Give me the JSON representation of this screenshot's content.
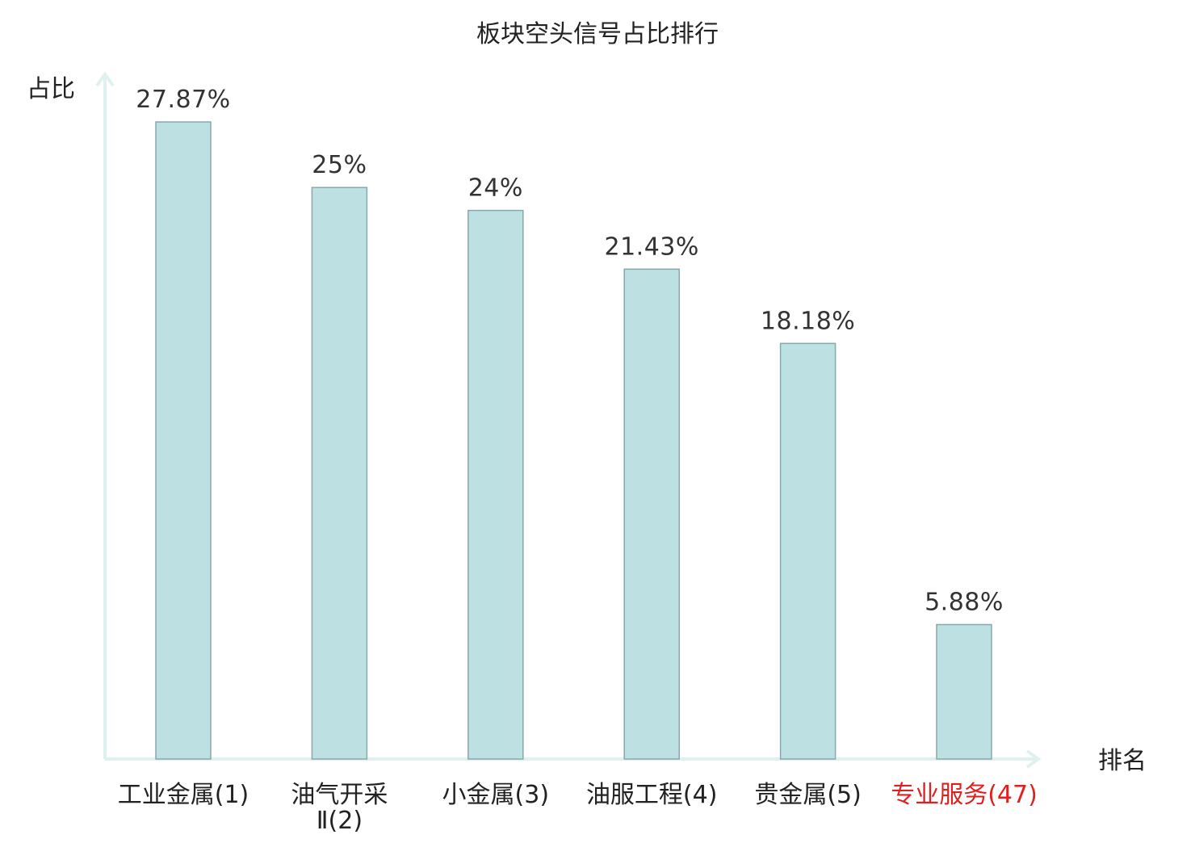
{
  "chart_data": {
    "type": "bar",
    "title": "板块空头信号占比排行",
    "ylabel": "占比",
    "xlabel": "排名",
    "categories": [
      [
        "工业金属(1)"
      ],
      [
        "油气开采",
        "Ⅱ(2)"
      ],
      [
        "小金属(3)"
      ],
      [
        "油服工程(4)"
      ],
      [
        "贵金属(5)"
      ],
      [
        "专业服务(47)"
      ]
    ],
    "values": [
      27.87,
      25,
      24,
      21.43,
      18.18,
      5.88
    ],
    "value_labels": [
      "27.87%",
      "25%",
      "24%",
      "21.43%",
      "18.18%",
      "5.88%"
    ],
    "highlight_index": 5,
    "ylim": [
      0,
      28
    ],
    "grid": false,
    "colors": {
      "bar_fill": "#bde0e3",
      "bar_stroke": "#8aa8ab",
      "axis": "#dff1ef",
      "highlight_label": "#e02020"
    }
  }
}
